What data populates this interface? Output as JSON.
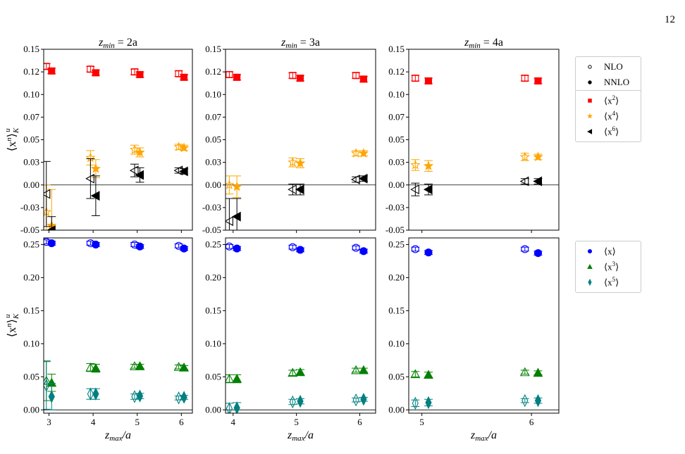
{
  "page": {
    "number": "12"
  },
  "colors": {
    "x": "#0000ff",
    "x2": "#ff0000",
    "x3": "#008000",
    "x4": "#ffa500",
    "x5": "#008080",
    "x6": "#000000"
  },
  "legend_top_order": [
    "NLO",
    "NNLO"
  ],
  "legend_top": [
    {
      "label": "NLO",
      "marker": "open-circle"
    },
    {
      "label": "NNLO",
      "marker": "filled-circle"
    }
  ],
  "legend_even": [
    {
      "key": "x2",
      "base": "⟨x",
      "sup": "2",
      "close": "⟩",
      "marker": "square",
      "color": "#ff0000"
    },
    {
      "key": "x4",
      "base": "⟨x",
      "sup": "4",
      "close": "⟩",
      "marker": "star",
      "color": "#ffa500"
    },
    {
      "key": "x6",
      "base": "⟨x",
      "sup": "6",
      "close": "⟩",
      "marker": "triangle-left",
      "color": "#000000"
    }
  ],
  "legend_odd": [
    {
      "key": "x",
      "base": "⟨x",
      "sup": "",
      "close": "⟩",
      "marker": "circle",
      "color": "#0000ff"
    },
    {
      "key": "x3",
      "base": "⟨x",
      "sup": "3",
      "close": "⟩",
      "marker": "triangle-up",
      "color": "#008000"
    },
    {
      "key": "x5",
      "base": "⟨x",
      "sup": "5",
      "close": "⟩",
      "marker": "thin-diamond",
      "color": "#008080"
    }
  ],
  "chart_data": [
    {
      "type": "scatter",
      "panel": "top-1",
      "title": "zmin = 2a",
      "ylabel": "⟨x^n⟩_K^u",
      "xlabel": "",
      "ylim": [
        -0.05,
        0.15
      ],
      "xlim": [
        2.88,
        6.25
      ],
      "yticks": [
        "-0.05",
        "-0.03",
        "0.00",
        "0.03",
        "0.05",
        "0.07",
        "0.10",
        "0.12",
        "0.15"
      ],
      "ytick_values": [
        -0.05,
        -0.025,
        0.0,
        0.025,
        0.05,
        0.075,
        0.1,
        0.125,
        0.15
      ],
      "xticks": [],
      "xtick_values": [
        3,
        4,
        5,
        6
      ],
      "hline": 0,
      "series": [
        {
          "key": "x2",
          "order": "NLO",
          "x": [
            3,
            4,
            5,
            6
          ],
          "y": [
            0.131,
            0.128,
            0.125,
            0.123
          ],
          "err": [
            0.003,
            0.003,
            0.003,
            0.003
          ]
        },
        {
          "key": "x2",
          "order": "NNLO",
          "x": [
            3,
            4,
            5,
            6
          ],
          "y": [
            0.126,
            0.124,
            0.122,
            0.119
          ],
          "err": [
            0.003,
            0.003,
            0.003,
            0.003
          ]
        },
        {
          "key": "x4",
          "order": "NLO",
          "x": [
            3,
            4,
            5,
            6
          ],
          "y": [
            -0.03,
            0.03,
            0.039,
            0.042
          ],
          "err": [
            0.03,
            0.008,
            0.005,
            0.003
          ]
        },
        {
          "key": "x4",
          "order": "NNLO",
          "x": [
            3,
            4,
            5,
            6
          ],
          "y": [
            -0.045,
            0.018,
            0.036,
            0.041
          ],
          "err": [
            0.04,
            0.01,
            0.005,
            0.003
          ]
        },
        {
          "key": "x6",
          "order": "NLO",
          "x": [
            3,
            4,
            5,
            6
          ],
          "y": [
            -0.01,
            0.007,
            0.016,
            0.016
          ],
          "err": [
            0.036,
            0.022,
            0.007,
            0.003
          ]
        },
        {
          "key": "x6",
          "order": "NNLO",
          "x": [
            3,
            4,
            5,
            6
          ],
          "y": [
            -0.05,
            -0.012,
            0.011,
            0.015
          ],
          "err": [
            0.015,
            0.022,
            0.008,
            0.003
          ]
        }
      ]
    },
    {
      "type": "scatter",
      "panel": "top-2",
      "title": "zmin = 3a",
      "ylabel": "",
      "xlabel": "",
      "ylim": [
        -0.05,
        0.15
      ],
      "xlim": [
        3.88,
        6.25
      ],
      "yticks": [
        "-0.05",
        "-0.03",
        "0.00",
        "0.03",
        "0.05",
        "0.07",
        "0.10",
        "0.12",
        "0.15"
      ],
      "ytick_values": [
        -0.05,
        -0.025,
        0.0,
        0.025,
        0.05,
        0.075,
        0.1,
        0.125,
        0.15
      ],
      "xticks": [],
      "xtick_values": [
        4,
        5,
        6
      ],
      "hline": 0,
      "series": [
        {
          "key": "x2",
          "order": "NLO",
          "x": [
            4,
            5,
            6
          ],
          "y": [
            0.122,
            0.121,
            0.121
          ],
          "err": [
            0.003,
            0.003,
            0.003
          ]
        },
        {
          "key": "x2",
          "order": "NNLO",
          "x": [
            4,
            5,
            6
          ],
          "y": [
            0.119,
            0.118,
            0.117
          ],
          "err": [
            0.003,
            0.003,
            0.003
          ]
        },
        {
          "key": "x4",
          "order": "NLO",
          "x": [
            4,
            5,
            6
          ],
          "y": [
            0.0,
            0.025,
            0.035
          ],
          "err": [
            0.01,
            0.005,
            0.003
          ]
        },
        {
          "key": "x4",
          "order": "NNLO",
          "x": [
            4,
            5,
            6
          ],
          "y": [
            -0.002,
            0.024,
            0.035
          ],
          "err": [
            0.012,
            0.005,
            0.003
          ]
        },
        {
          "key": "x6",
          "order": "NLO",
          "x": [
            4,
            5,
            6
          ],
          "y": [
            -0.04,
            -0.005,
            0.006
          ],
          "err": [
            0.025,
            0.006,
            0.003
          ]
        },
        {
          "key": "x6",
          "order": "NNLO",
          "x": [
            4,
            5,
            6
          ],
          "y": [
            -0.035,
            -0.005,
            0.007
          ],
          "err": [
            0.02,
            0.006,
            0.003
          ]
        }
      ]
    },
    {
      "type": "scatter",
      "panel": "top-3",
      "title": "zmin = 4a",
      "ylabel": "",
      "xlabel": "",
      "ylim": [
        -0.05,
        0.15
      ],
      "xlim": [
        4.88,
        6.25
      ],
      "yticks": [
        "-0.05",
        "-0.03",
        "0.00",
        "0.03",
        "0.05",
        "0.07",
        "0.10",
        "0.12",
        "0.15"
      ],
      "ytick_values": [
        -0.05,
        -0.025,
        0.0,
        0.025,
        0.05,
        0.075,
        0.1,
        0.125,
        0.15
      ],
      "xticks": [],
      "xtick_values": [
        5,
        6
      ],
      "hline": 0,
      "series": [
        {
          "key": "x2",
          "order": "NLO",
          "x": [
            5,
            6
          ],
          "y": [
            0.118,
            0.118
          ],
          "err": [
            0.003,
            0.003
          ]
        },
        {
          "key": "x2",
          "order": "NNLO",
          "x": [
            5,
            6
          ],
          "y": [
            0.115,
            0.115
          ],
          "err": [
            0.003,
            0.003
          ]
        },
        {
          "key": "x4",
          "order": "NLO",
          "x": [
            5,
            6
          ],
          "y": [
            0.022,
            0.031
          ],
          "err": [
            0.006,
            0.004
          ]
        },
        {
          "key": "x4",
          "order": "NNLO",
          "x": [
            5,
            6
          ],
          "y": [
            0.021,
            0.031
          ],
          "err": [
            0.006,
            0.003
          ]
        },
        {
          "key": "x6",
          "order": "NLO",
          "x": [
            5,
            6
          ],
          "y": [
            -0.005,
            0.004
          ],
          "err": [
            0.007,
            0.003
          ]
        },
        {
          "key": "x6",
          "order": "NNLO",
          "x": [
            5,
            6
          ],
          "y": [
            -0.005,
            0.004
          ],
          "err": [
            0.006,
            0.003
          ]
        }
      ]
    },
    {
      "type": "scatter",
      "panel": "bottom-1",
      "title": "",
      "ylabel": "⟨x^n⟩_K^u",
      "xlabel": "zmax/a",
      "ylim": [
        -0.005,
        0.26
      ],
      "xlim": [
        2.88,
        6.25
      ],
      "yticks": [
        "0.00",
        "0.05",
        "0.10",
        "0.15",
        "0.20",
        "0.25"
      ],
      "ytick_values": [
        0.0,
        0.05,
        0.1,
        0.15,
        0.2,
        0.25
      ],
      "xticks": [
        "3",
        "4",
        "5",
        "6"
      ],
      "xtick_values": [
        3,
        4,
        5,
        6
      ],
      "hline": 0,
      "series": [
        {
          "key": "x",
          "order": "NLO",
          "x": [
            3,
            4,
            5,
            6
          ],
          "y": [
            0.254,
            0.252,
            0.25,
            0.248
          ],
          "err": [
            0.003,
            0.003,
            0.003,
            0.003
          ]
        },
        {
          "key": "x",
          "order": "NNLO",
          "x": [
            3,
            4,
            5,
            6
          ],
          "y": [
            0.252,
            0.25,
            0.247,
            0.244
          ],
          "err": [
            0.003,
            0.003,
            0.003,
            0.003
          ]
        },
        {
          "key": "x3",
          "order": "NLO",
          "x": [
            3,
            4,
            5,
            6
          ],
          "y": [
            0.044,
            0.064,
            0.066,
            0.065
          ],
          "err": [
            0.03,
            0.006,
            0.003,
            0.003
          ]
        },
        {
          "key": "x3",
          "order": "NNLO",
          "x": [
            3,
            4,
            5,
            6
          ],
          "y": [
            0.041,
            0.063,
            0.066,
            0.064
          ],
          "err": [
            0.013,
            0.006,
            0.003,
            0.003
          ]
        },
        {
          "key": "x5",
          "order": "NLO",
          "x": [
            3,
            4,
            5,
            6
          ],
          "y": [
            0.037,
            0.024,
            0.02,
            0.018
          ],
          "err": [
            0.036,
            0.008,
            0.004,
            0.003
          ]
        },
        {
          "key": "x5",
          "order": "NNLO",
          "x": [
            3,
            4,
            5,
            6
          ],
          "y": [
            0.02,
            0.024,
            0.021,
            0.019
          ],
          "err": [
            0.02,
            0.008,
            0.004,
            0.003
          ]
        }
      ]
    },
    {
      "type": "scatter",
      "panel": "bottom-2",
      "title": "",
      "ylabel": "",
      "xlabel": "zmax/a",
      "ylim": [
        -0.005,
        0.26
      ],
      "xlim": [
        3.88,
        6.25
      ],
      "yticks": [
        "0.00",
        "0.05",
        "0.10",
        "0.15",
        "0.20",
        "0.25"
      ],
      "ytick_values": [
        0.0,
        0.05,
        0.1,
        0.15,
        0.2,
        0.25
      ],
      "xticks": [
        "4",
        "5",
        "6"
      ],
      "xtick_values": [
        4,
        5,
        6
      ],
      "hline": 0,
      "series": [
        {
          "key": "x",
          "order": "NLO",
          "x": [
            4,
            5,
            6
          ],
          "y": [
            0.247,
            0.246,
            0.245
          ],
          "err": [
            0.003,
            0.003,
            0.003
          ]
        },
        {
          "key": "x",
          "order": "NNLO",
          "x": [
            4,
            5,
            6
          ],
          "y": [
            0.244,
            0.242,
            0.24
          ],
          "err": [
            0.003,
            0.003,
            0.003
          ]
        },
        {
          "key": "x3",
          "order": "NLO",
          "x": [
            4,
            5,
            6
          ],
          "y": [
            0.047,
            0.056,
            0.06
          ],
          "err": [
            0.006,
            0.004,
            0.003
          ]
        },
        {
          "key": "x3",
          "order": "NNLO",
          "x": [
            4,
            5,
            6
          ],
          "y": [
            0.047,
            0.057,
            0.06
          ],
          "err": [
            0.006,
            0.004,
            0.003
          ]
        },
        {
          "key": "x5",
          "order": "NLO",
          "x": [
            4,
            5,
            6
          ],
          "y": [
            0.002,
            0.012,
            0.015
          ],
          "err": [
            0.008,
            0.004,
            0.003
          ]
        },
        {
          "key": "x5",
          "order": "NNLO",
          "x": [
            4,
            5,
            6
          ],
          "y": [
            0.003,
            0.013,
            0.016
          ],
          "err": [
            0.008,
            0.004,
            0.003
          ]
        }
      ]
    },
    {
      "type": "scatter",
      "panel": "bottom-3",
      "title": "",
      "ylabel": "",
      "xlabel": "zmax/a",
      "ylim": [
        -0.005,
        0.26
      ],
      "xlim": [
        4.88,
        6.25
      ],
      "yticks": [
        "0.00",
        "0.05",
        "0.10",
        "0.15",
        "0.20",
        "0.25"
      ],
      "ytick_values": [
        0.0,
        0.05,
        0.1,
        0.15,
        0.2,
        0.25
      ],
      "xticks": [
        "5",
        "6"
      ],
      "xtick_values": [
        5,
        6
      ],
      "hline": 0,
      "series": [
        {
          "key": "x",
          "order": "NLO",
          "x": [
            5,
            6
          ],
          "y": [
            0.243,
            0.243
          ],
          "err": [
            0.003,
            0.003
          ]
        },
        {
          "key": "x",
          "order": "NNLO",
          "x": [
            5,
            6
          ],
          "y": [
            0.238,
            0.237
          ],
          "err": [
            0.003,
            0.003
          ]
        },
        {
          "key": "x3",
          "order": "NLO",
          "x": [
            5,
            6
          ],
          "y": [
            0.054,
            0.057
          ],
          "err": [
            0.004,
            0.003
          ]
        },
        {
          "key": "x3",
          "order": "NNLO",
          "x": [
            5,
            6
          ],
          "y": [
            0.053,
            0.056
          ],
          "err": [
            0.004,
            0.003
          ]
        },
        {
          "key": "x5",
          "order": "NLO",
          "x": [
            5,
            6
          ],
          "y": [
            0.01,
            0.014
          ],
          "err": [
            0.005,
            0.003
          ]
        },
        {
          "key": "x5",
          "order": "NNLO",
          "x": [
            5,
            6
          ],
          "y": [
            0.011,
            0.014
          ],
          "err": [
            0.005,
            0.004
          ]
        }
      ]
    }
  ]
}
